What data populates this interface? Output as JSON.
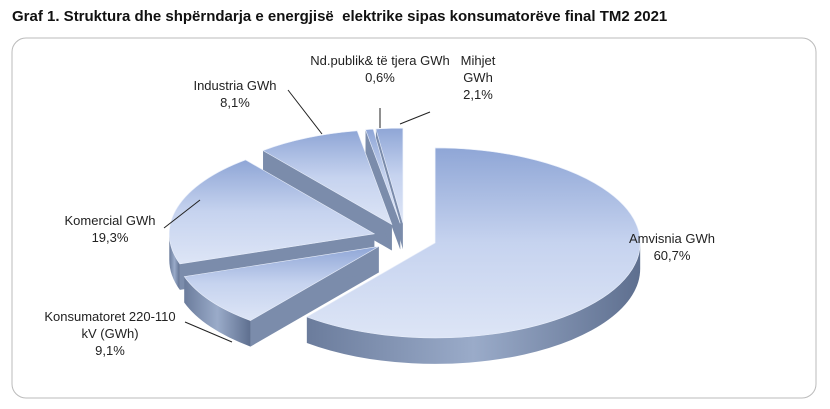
{
  "chart_data": {
    "type": "pie3d",
    "title": "Graf 1. Struktura dhe shpërndarja e energjisë  elektrike sipas konsumatorëve final TM2 2021",
    "categories": [
      "Amvisnia GWh",
      "Konsumatoret 220-110 kV  (GWh)",
      "Komercial GWh",
      "Industria GWh",
      "Nd.publik& të tjera GWh",
      "Mihjet GWh"
    ],
    "values": [
      60.7,
      9.1,
      19.3,
      8.1,
      0.6,
      2.1
    ],
    "value_labels": [
      "60,7%",
      "9,1%",
      "19,3%",
      "8,1%",
      "0,6%",
      "2,1%"
    ],
    "color": "#a9bde6"
  }
}
